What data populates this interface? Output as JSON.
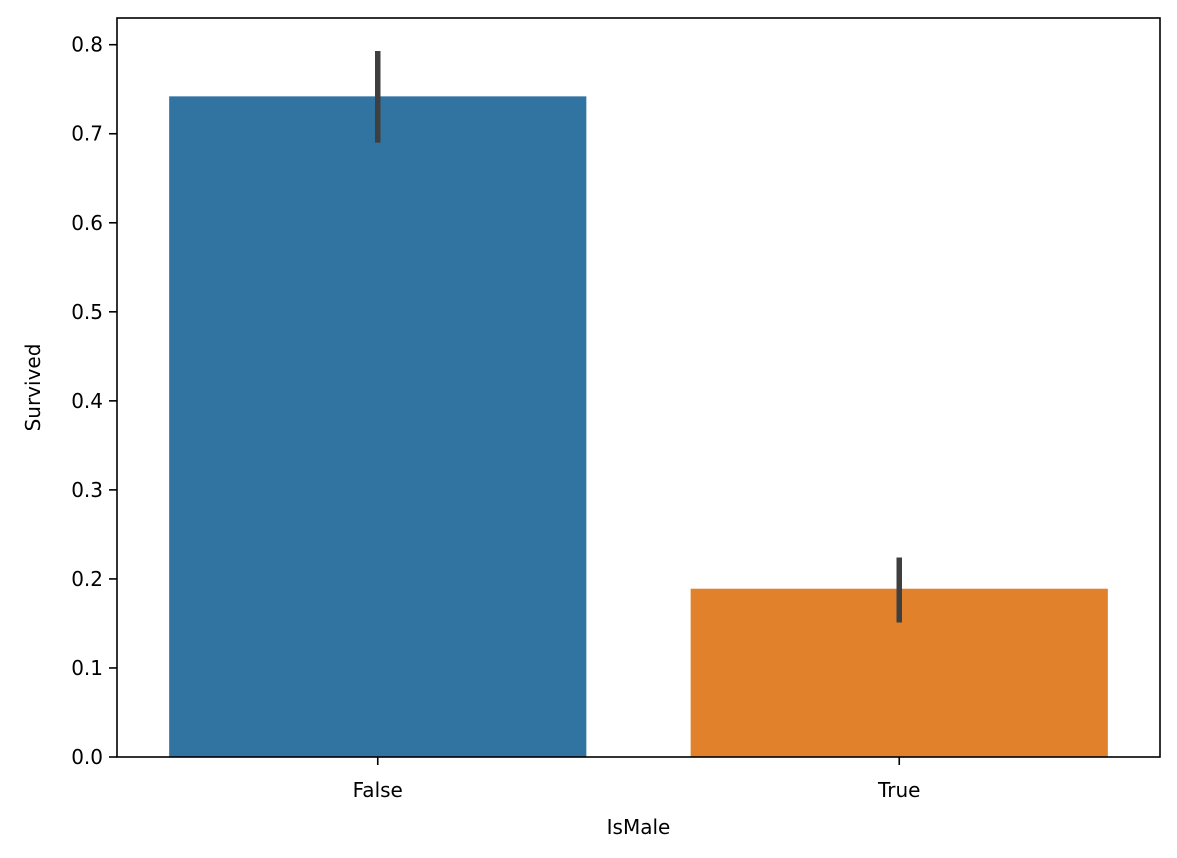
{
  "chart_data": {
    "type": "bar",
    "xlabel": "IsMale",
    "ylabel": "Survived",
    "categories": [
      "False",
      "True"
    ],
    "values": [
      0.742,
      0.189
    ],
    "error_bars": [
      [
        0.69,
        0.793
      ],
      [
        0.151,
        0.224
      ]
    ],
    "ylim": [
      0,
      0.83
    ],
    "yticks": [
      0.0,
      0.1,
      0.2,
      0.3,
      0.4,
      0.5,
      0.6,
      0.7,
      0.8
    ],
    "ytick_labels": [
      "0.0",
      "0.1",
      "0.2",
      "0.3",
      "0.4",
      "0.5",
      "0.6",
      "0.7",
      "0.8"
    ],
    "colors": [
      "#3274a1",
      "#e1812c"
    ],
    "error_bar_color": "#3f3f3f",
    "grid": false,
    "legend": "none"
  }
}
